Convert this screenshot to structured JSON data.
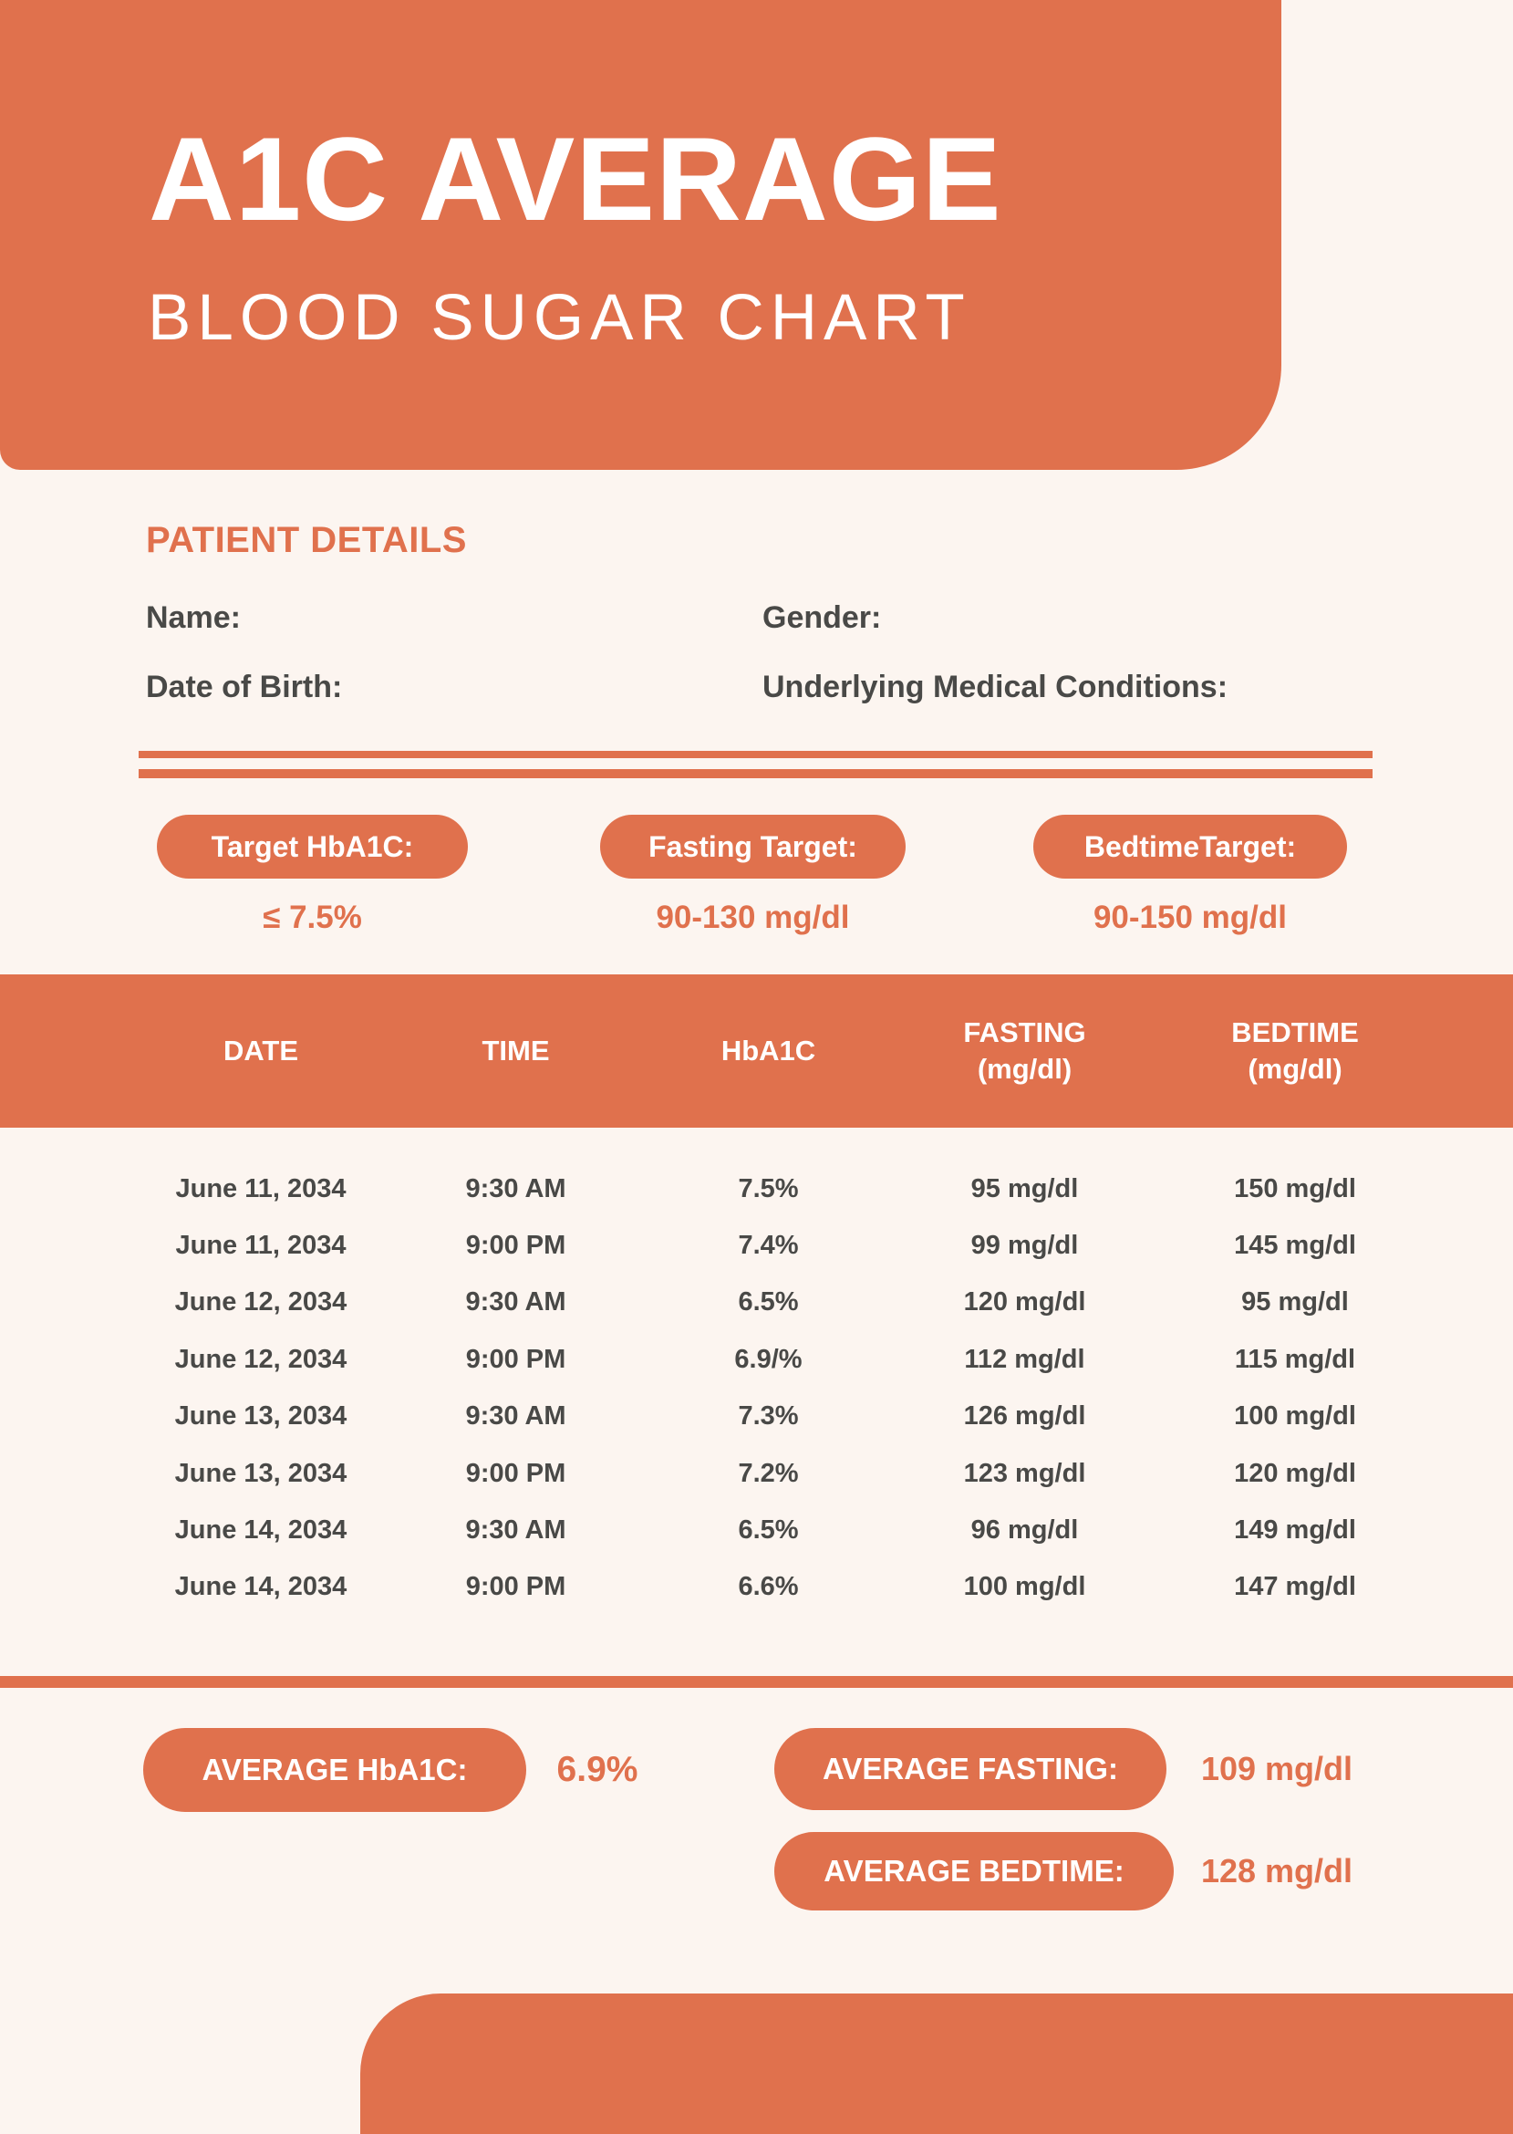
{
  "colors": {
    "accent": "#E0714D",
    "background": "#FCF5F0",
    "text_dark": "#494947",
    "text_light": "#FFFFFF"
  },
  "header": {
    "title": "A1C AVERAGE",
    "subtitle": "BLOOD SUGAR CHART"
  },
  "patient": {
    "section_title": "PATIENT DETAILS",
    "name_label": "Name:",
    "gender_label": "Gender:",
    "dob_label": "Date of Birth:",
    "conditions_label": "Underlying Medical Conditions:"
  },
  "targets": {
    "hba1c": {
      "label": "Target HbA1C:",
      "value": "≤ 7.5%"
    },
    "fasting": {
      "label": "Fasting Target:",
      "value": "90-130 mg/dl"
    },
    "bedtime": {
      "label": "BedtimeTarget:",
      "value": "90-150 mg/dl"
    }
  },
  "table": {
    "headers": {
      "date": "DATE",
      "time": "TIME",
      "hba1c": "HbA1C",
      "fasting": "FASTING",
      "fasting_unit": "(mg/dl)",
      "bedtime": "BEDTIME",
      "bedtime_unit": "(mg/dl)"
    },
    "rows": [
      {
        "date": "June 11, 2034",
        "time": "9:30 AM",
        "hba1c": "7.5%",
        "fasting": "95 mg/dl",
        "bedtime": "150 mg/dl"
      },
      {
        "date": "June 11, 2034",
        "time": "9:00 PM",
        "hba1c": "7.4%",
        "fasting": "99 mg/dl",
        "bedtime": "145 mg/dl"
      },
      {
        "date": "June 12, 2034",
        "time": "9:30 AM",
        "hba1c": "6.5%",
        "fasting": "120 mg/dl",
        "bedtime": "95 mg/dl"
      },
      {
        "date": "June 12, 2034",
        "time": "9:00 PM",
        "hba1c": "6.9/%",
        "fasting": "112 mg/dl",
        "bedtime": "115 mg/dl"
      },
      {
        "date": "June 13, 2034",
        "time": "9:30 AM",
        "hba1c": "7.3%",
        "fasting": "126 mg/dl",
        "bedtime": "100 mg/dl"
      },
      {
        "date": "June 13, 2034",
        "time": "9:00 PM",
        "hba1c": "7.2%",
        "fasting": "123 mg/dl",
        "bedtime": "120 mg/dl"
      },
      {
        "date": "June 14, 2034",
        "time": "9:30 AM",
        "hba1c": "6.5%",
        "fasting": "96 mg/dl",
        "bedtime": "149 mg/dl"
      },
      {
        "date": "June 14, 2034",
        "time": "9:00 PM",
        "hba1c": "6.6%",
        "fasting": "100 mg/dl",
        "bedtime": "147 mg/dl"
      }
    ]
  },
  "averages": {
    "hba1c": {
      "label": "AVERAGE HbA1C:",
      "value": "6.9%"
    },
    "fasting": {
      "label": "AVERAGE FASTING:",
      "value": "109 mg/dl"
    },
    "bedtime": {
      "label": "AVERAGE BEDTIME:",
      "value": "128 mg/dl"
    }
  }
}
